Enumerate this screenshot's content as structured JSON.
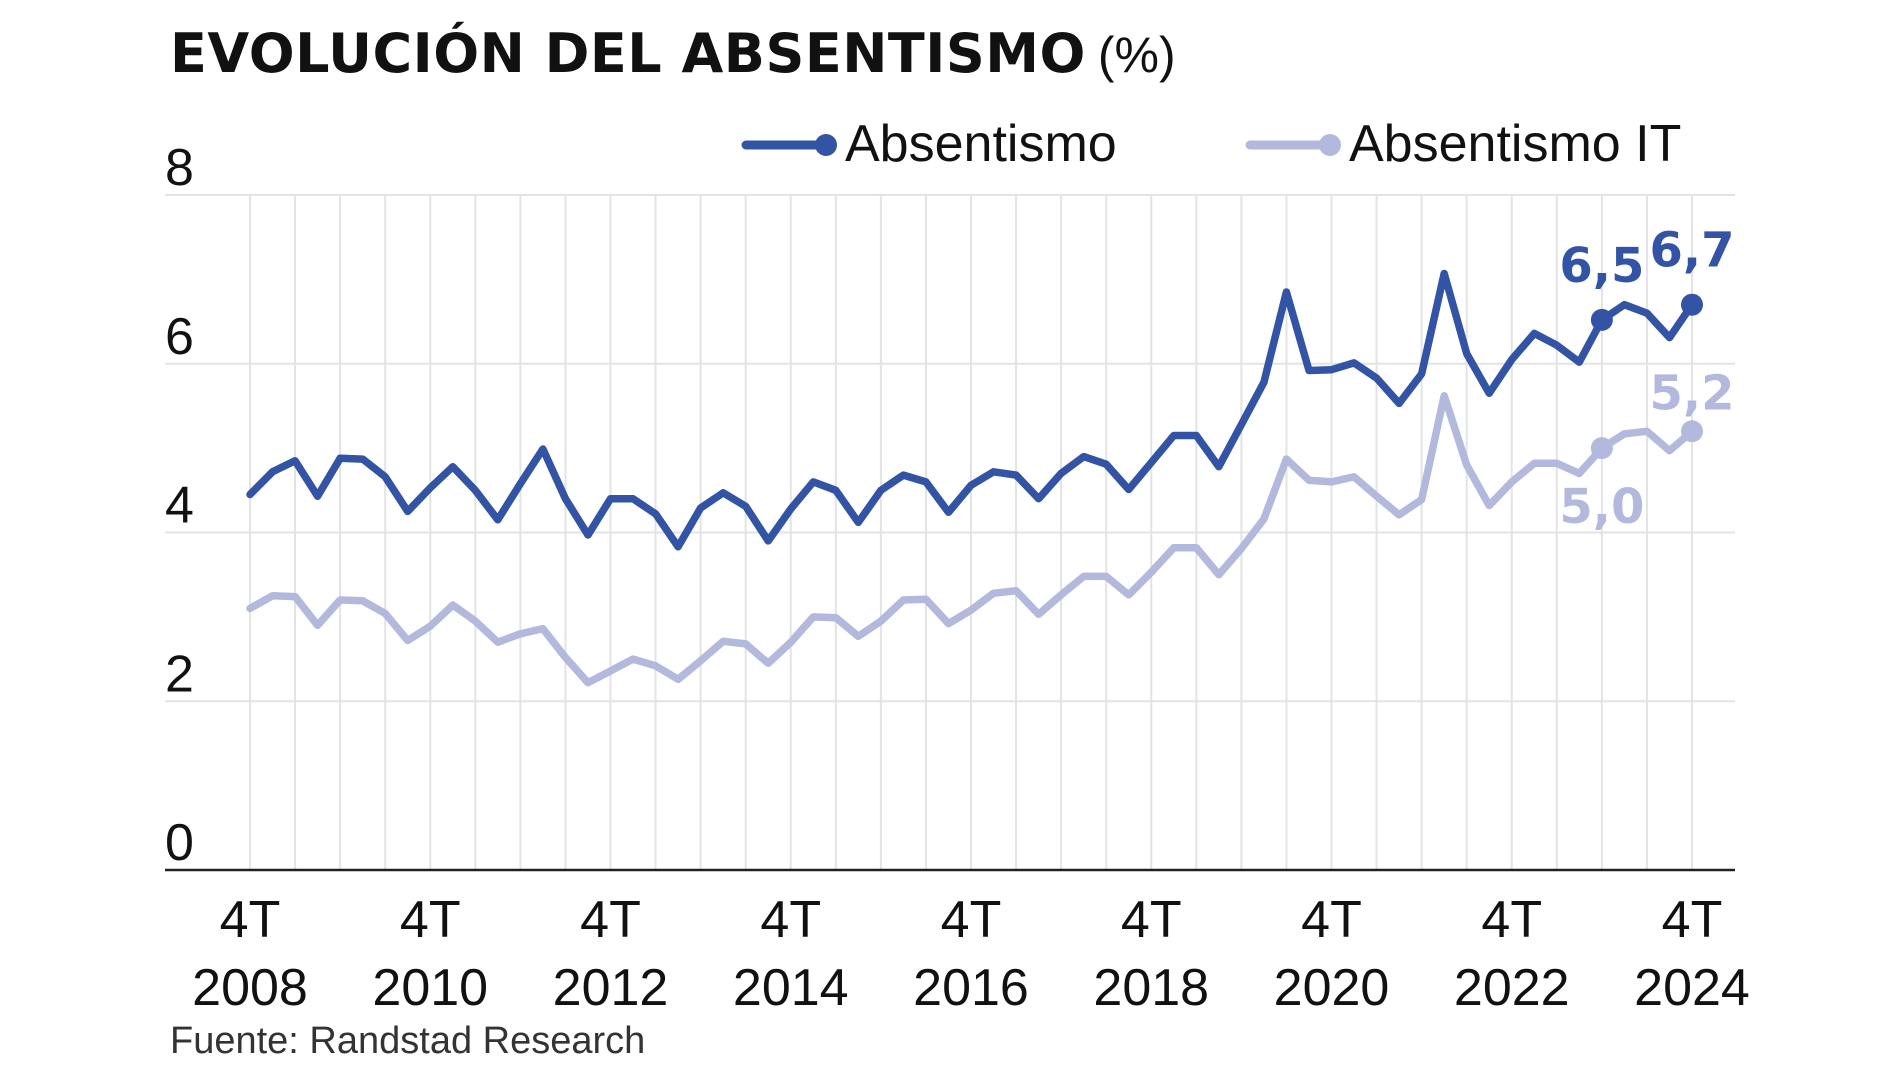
{
  "header": {
    "title": "EVOLUCIÓN DEL ABSENTISMO",
    "unit": "(%)"
  },
  "footer": {
    "source": "Fuente: Randstad Research"
  },
  "colors": {
    "absentismo": "#3354a4",
    "absentismo_it": "#b3b8dd",
    "grid": "#e3e3e3",
    "axis": "#222222"
  },
  "chart_data": {
    "type": "line",
    "title": "EVOLUCIÓN DEL ABSENTISMO (%)",
    "xlabel": "",
    "ylabel": "",
    "ylim": [
      0,
      8
    ],
    "yticks": [
      0,
      2,
      4,
      6,
      8
    ],
    "grid": true,
    "legend_position": "top-right",
    "x_tick_labels": [
      {
        "top": "4T",
        "bottom": "2008",
        "index": 0
      },
      {
        "top": "4T",
        "bottom": "2010",
        "index": 8
      },
      {
        "top": "4T",
        "bottom": "2012",
        "index": 16
      },
      {
        "top": "4T",
        "bottom": "2014",
        "index": 24
      },
      {
        "top": "4T",
        "bottom": "2016",
        "index": 32
      },
      {
        "top": "4T",
        "bottom": "2018",
        "index": 40
      },
      {
        "top": "4T",
        "bottom": "2020",
        "index": 48
      },
      {
        "top": "4T",
        "bottom": "2022",
        "index": 56
      },
      {
        "top": "4T",
        "bottom": "2024",
        "index": 64
      }
    ],
    "series": [
      {
        "name": "Absentismo",
        "values": [
          4.45,
          4.72,
          4.85,
          4.43,
          4.88,
          4.87,
          4.66,
          4.25,
          4.53,
          4.78,
          4.5,
          4.15,
          4.58,
          4.99,
          4.4,
          3.97,
          4.4,
          4.4,
          4.22,
          3.83,
          4.29,
          4.47,
          4.31,
          3.9,
          4.28,
          4.6,
          4.5,
          4.12,
          4.5,
          4.68,
          4.6,
          4.24,
          4.56,
          4.72,
          4.68,
          4.4,
          4.7,
          4.9,
          4.81,
          4.51,
          4.83,
          5.15,
          5.15,
          4.78,
          5.28,
          5.78,
          6.85,
          5.92,
          5.93,
          6.01,
          5.83,
          5.53,
          5.88,
          7.07,
          6.12,
          5.65,
          6.05,
          6.36,
          6.22,
          6.02,
          6.52,
          6.7,
          6.6,
          6.31,
          6.7
        ],
        "highlights": [
          {
            "index": 60,
            "label": "6,5"
          },
          {
            "index": 64,
            "label": "6,7"
          }
        ]
      },
      {
        "name": "Absentismo IT",
        "values": [
          3.1,
          3.25,
          3.24,
          2.9,
          3.2,
          3.19,
          3.04,
          2.72,
          2.89,
          3.14,
          2.95,
          2.7,
          2.8,
          2.86,
          2.52,
          2.22,
          2.36,
          2.5,
          2.42,
          2.26,
          2.48,
          2.71,
          2.68,
          2.45,
          2.7,
          3.0,
          2.99,
          2.77,
          2.95,
          3.2,
          3.21,
          2.92,
          3.08,
          3.28,
          3.31,
          3.03,
          3.26,
          3.48,
          3.48,
          3.26,
          3.53,
          3.82,
          3.82,
          3.5,
          3.81,
          4.16,
          4.87,
          4.62,
          4.6,
          4.66,
          4.43,
          4.21,
          4.39,
          5.62,
          4.8,
          4.32,
          4.6,
          4.82,
          4.82,
          4.7,
          5.0,
          5.17,
          5.2,
          4.97,
          5.2
        ],
        "highlights": [
          {
            "index": 60,
            "label": "5,0"
          },
          {
            "index": 64,
            "label": "5,2"
          }
        ]
      }
    ]
  }
}
